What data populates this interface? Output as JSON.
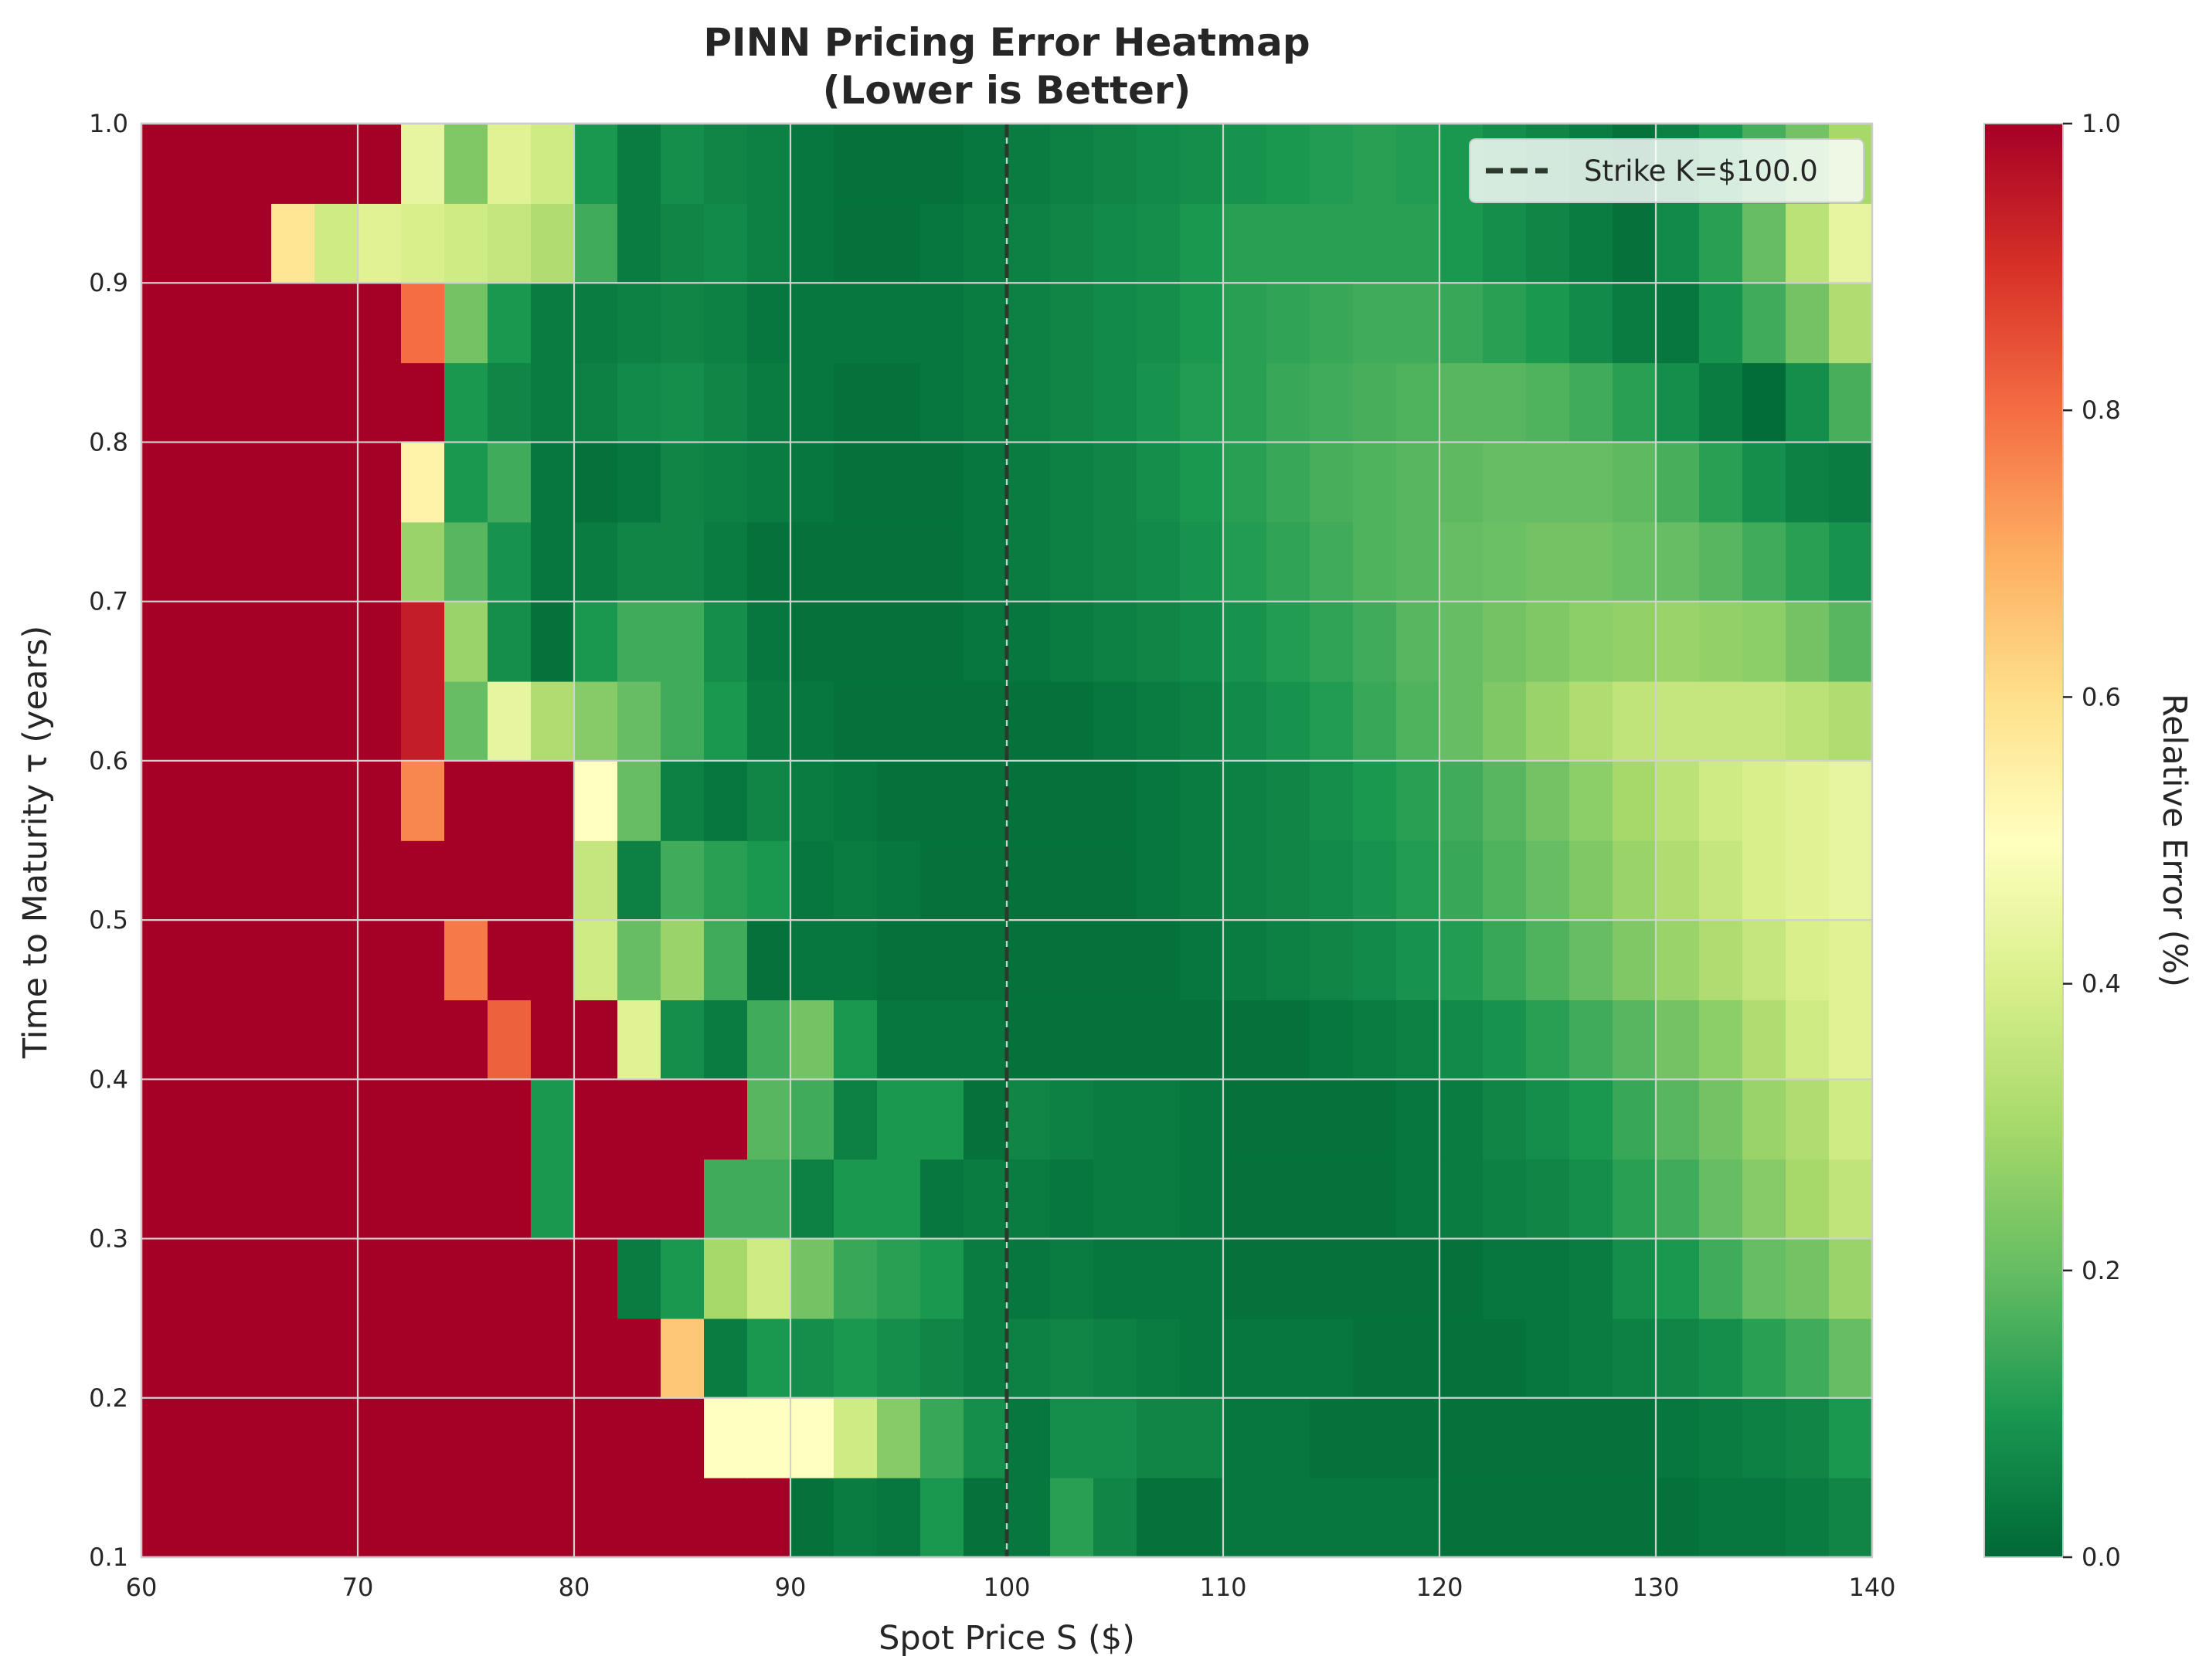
{
  "chart_data": {
    "type": "heatmap",
    "title": "PINN Pricing Error Heatmap",
    "subtitle": "(Lower is Better)",
    "xlabel": "Spot Price S ($)",
    "ylabel": "Time to Maturity τ (years)",
    "xlim": [
      60,
      140
    ],
    "ylim": [
      0.1,
      1.0
    ],
    "x_ticks": [
      "60",
      "70",
      "80",
      "90",
      "100",
      "110",
      "120",
      "130",
      "140"
    ],
    "y_ticks": [
      "0.1",
      "0.2",
      "0.3",
      "0.4",
      "0.5",
      "0.6",
      "0.7",
      "0.8",
      "0.9",
      "1.0"
    ],
    "grid": true,
    "colormap": "RdYlGn_r",
    "colorbar": {
      "label": "Relative Error (%)",
      "range": [
        0.0,
        1.0
      ],
      "ticks": [
        "0.0",
        "0.2",
        "0.4",
        "0.6",
        "0.8",
        "1.0"
      ]
    },
    "strike_line": {
      "x": 100,
      "label": "Strike K=$100.0",
      "color": "#2b3a2b"
    },
    "legend_position": "top-right",
    "grid_cols": 40,
    "grid_rows": 18,
    "z": [
      [
        1,
        1,
        1,
        1,
        1,
        1,
        1,
        1,
        1,
        1,
        1,
        1,
        1,
        1,
        1,
        0.02,
        0.04,
        0.03,
        0.1,
        0.02,
        0.03,
        0.12,
        0.06,
        0.02,
        0.02,
        0.03,
        0.03,
        0.03,
        0.03,
        0.03,
        0.02,
        0.02,
        0.02,
        0.02,
        0.02,
        0.02,
        0.03,
        0.03,
        0.04,
        0.06
      ],
      [
        1,
        1,
        1,
        1,
        1,
        1,
        1,
        1,
        1,
        1,
        1,
        1,
        1,
        0.5,
        0.5,
        0.5,
        0.38,
        0.25,
        0.14,
        0.08,
        0.03,
        0.08,
        0.08,
        0.06,
        0.06,
        0.03,
        0.03,
        0.02,
        0.02,
        0.02,
        0.02,
        0.02,
        0.02,
        0.02,
        0.02,
        0.03,
        0.04,
        0.05,
        0.06,
        0.1
      ],
      [
        1,
        1,
        1,
        1,
        1,
        1,
        1,
        1,
        1,
        1,
        1,
        1,
        0.65,
        0.04,
        0.1,
        0.08,
        0.1,
        0.08,
        0.06,
        0.04,
        0.05,
        0.06,
        0.05,
        0.04,
        0.03,
        0.03,
        0.03,
        0.03,
        0.02,
        0.02,
        0.02,
        0.02,
        0.03,
        0.04,
        0.05,
        0.06,
        0.08,
        0.12,
        0.15,
        0.2
      ],
      [
        1,
        1,
        1,
        1,
        1,
        1,
        1,
        1,
        1,
        1,
        1,
        0.04,
        0.1,
        0.3,
        0.38,
        0.22,
        0.14,
        0.12,
        0.1,
        0.04,
        0.03,
        0.04,
        0.03,
        0.03,
        0.03,
        0.02,
        0.02,
        0.02,
        0.02,
        0.02,
        0.02,
        0.03,
        0.03,
        0.04,
        0.08,
        0.1,
        0.15,
        0.2,
        0.22,
        0.28
      ],
      [
        1,
        1,
        1,
        1,
        1,
        1,
        1,
        1,
        1,
        0.1,
        1,
        1,
        1,
        0.15,
        0.15,
        0.05,
        0.1,
        0.1,
        0.03,
        0.04,
        0.04,
        0.03,
        0.04,
        0.04,
        0.03,
        0.02,
        0.02,
        0.02,
        0.02,
        0.03,
        0.04,
        0.05,
        0.06,
        0.08,
        0.12,
        0.15,
        0.2,
        0.25,
        0.3,
        0.35
      ],
      [
        1,
        1,
        1,
        1,
        1,
        1,
        1,
        1,
        1,
        0.1,
        1,
        1,
        1,
        1,
        0.18,
        0.15,
        0.05,
        0.1,
        0.1,
        0.02,
        0.06,
        0.05,
        0.04,
        0.04,
        0.03,
        0.02,
        0.02,
        0.02,
        0.02,
        0.03,
        0.04,
        0.06,
        0.08,
        0.1,
        0.14,
        0.18,
        0.22,
        0.28,
        0.32,
        0.38
      ],
      [
        1,
        1,
        1,
        1,
        1,
        1,
        1,
        1,
        0.82,
        1,
        1,
        0.42,
        0.08,
        0.04,
        0.15,
        0.22,
        0.1,
        0.03,
        0.03,
        0.03,
        0.02,
        0.02,
        0.02,
        0.02,
        0.02,
        0.02,
        0.02,
        0.03,
        0.04,
        0.05,
        0.07,
        0.09,
        0.12,
        0.15,
        0.18,
        0.22,
        0.26,
        0.32,
        0.38,
        0.42
      ],
      [
        1,
        1,
        1,
        1,
        1,
        1,
        1,
        0.78,
        1,
        1,
        0.38,
        0.2,
        0.28,
        0.15,
        0.02,
        0.03,
        0.03,
        0.02,
        0.02,
        0.02,
        0.02,
        0.02,
        0.02,
        0.02,
        0.03,
        0.04,
        0.05,
        0.06,
        0.07,
        0.09,
        0.11,
        0.14,
        0.17,
        0.2,
        0.24,
        0.28,
        0.32,
        0.36,
        0.4,
        0.42
      ],
      [
        1,
        1,
        1,
        1,
        1,
        1,
        1,
        1,
        1,
        1,
        0.36,
        0.05,
        0.15,
        0.12,
        0.1,
        0.03,
        0.04,
        0.03,
        0.02,
        0.02,
        0.02,
        0.02,
        0.02,
        0.03,
        0.04,
        0.05,
        0.06,
        0.07,
        0.09,
        0.11,
        0.14,
        0.17,
        0.2,
        0.24,
        0.28,
        0.32,
        0.36,
        0.4,
        0.42,
        0.44
      ],
      [
        1,
        1,
        1,
        1,
        1,
        1,
        0.76,
        1,
        1,
        1,
        0.5,
        0.2,
        0.05,
        0.03,
        0.06,
        0.04,
        0.03,
        0.02,
        0.02,
        0.02,
        0.02,
        0.02,
        0.02,
        0.03,
        0.04,
        0.05,
        0.06,
        0.08,
        0.1,
        0.12,
        0.15,
        0.18,
        0.22,
        0.26,
        0.3,
        0.34,
        0.38,
        0.4,
        0.42,
        0.44
      ],
      [
        1,
        1,
        1,
        1,
        1,
        1,
        0.94,
        0.2,
        0.44,
        0.32,
        0.25,
        0.2,
        0.15,
        0.1,
        0.04,
        0.03,
        0.02,
        0.02,
        0.02,
        0.02,
        0.02,
        0.02,
        0.03,
        0.04,
        0.05,
        0.07,
        0.09,
        0.11,
        0.14,
        0.17,
        0.2,
        0.24,
        0.28,
        0.32,
        0.35,
        0.36,
        0.36,
        0.36,
        0.34,
        0.32
      ],
      [
        1,
        1,
        1,
        1,
        1,
        1,
        0.94,
        0.28,
        0.08,
        0.02,
        0.1,
        0.15,
        0.15,
        0.08,
        0.03,
        0.02,
        0.02,
        0.02,
        0.02,
        0.03,
        0.03,
        0.04,
        0.05,
        0.06,
        0.07,
        0.09,
        0.11,
        0.13,
        0.15,
        0.18,
        0.2,
        0.22,
        0.24,
        0.26,
        0.27,
        0.28,
        0.27,
        0.26,
        0.22,
        0.18
      ],
      [
        1,
        1,
        1,
        1,
        1,
        1,
        0.28,
        0.18,
        0.09,
        0.03,
        0.04,
        0.06,
        0.06,
        0.04,
        0.02,
        0.02,
        0.02,
        0.02,
        0.02,
        0.03,
        0.04,
        0.05,
        0.06,
        0.07,
        0.09,
        0.11,
        0.13,
        0.15,
        0.17,
        0.18,
        0.2,
        0.21,
        0.22,
        0.22,
        0.21,
        0.2,
        0.18,
        0.15,
        0.12,
        0.09
      ],
      [
        1,
        1,
        1,
        1,
        1,
        1,
        0.54,
        0.1,
        0.15,
        0.03,
        0.02,
        0.03,
        0.06,
        0.05,
        0.04,
        0.03,
        0.02,
        0.02,
        0.02,
        0.03,
        0.04,
        0.05,
        0.06,
        0.08,
        0.1,
        0.12,
        0.14,
        0.16,
        0.17,
        0.18,
        0.19,
        0.2,
        0.2,
        0.2,
        0.19,
        0.16,
        0.12,
        0.08,
        0.05,
        0.04
      ],
      [
        1,
        1,
        1,
        1,
        1,
        1,
        1,
        0.1,
        0.06,
        0.04,
        0.05,
        0.07,
        0.08,
        0.06,
        0.04,
        0.03,
        0.02,
        0.02,
        0.03,
        0.04,
        0.05,
        0.06,
        0.07,
        0.09,
        0.11,
        0.12,
        0.14,
        0.15,
        0.16,
        0.17,
        0.18,
        0.18,
        0.17,
        0.15,
        0.12,
        0.08,
        0.04,
        0.01,
        0.08,
        0.16
      ],
      [
        1,
        1,
        1,
        1,
        1,
        1,
        0.8,
        0.22,
        0.1,
        0.04,
        0.04,
        0.05,
        0.06,
        0.05,
        0.03,
        0.03,
        0.03,
        0.03,
        0.03,
        0.04,
        0.05,
        0.06,
        0.07,
        0.08,
        0.1,
        0.12,
        0.13,
        0.14,
        0.15,
        0.15,
        0.14,
        0.12,
        0.1,
        0.07,
        0.04,
        0.03,
        0.09,
        0.15,
        0.22,
        0.32
      ],
      [
        1,
        1,
        1,
        0.58,
        0.38,
        0.42,
        0.4,
        0.38,
        0.36,
        0.32,
        0.15,
        0.04,
        0.06,
        0.07,
        0.05,
        0.03,
        0.02,
        0.02,
        0.03,
        0.04,
        0.05,
        0.06,
        0.07,
        0.08,
        0.1,
        0.12,
        0.12,
        0.12,
        0.12,
        0.12,
        0.1,
        0.08,
        0.06,
        0.04,
        0.02,
        0.07,
        0.12,
        0.2,
        0.34,
        0.44
      ],
      [
        1,
        1,
        1,
        1,
        1,
        1,
        0.44,
        0.24,
        0.42,
        0.38,
        0.1,
        0.04,
        0.08,
        0.06,
        0.05,
        0.03,
        0.02,
        0.02,
        0.02,
        0.03,
        0.04,
        0.05,
        0.06,
        0.07,
        0.08,
        0.09,
        0.1,
        0.11,
        0.12,
        0.11,
        0.1,
        0.08,
        0.06,
        0.04,
        0.02,
        0.05,
        0.1,
        0.16,
        0.22,
        0.3
      ]
    ]
  }
}
